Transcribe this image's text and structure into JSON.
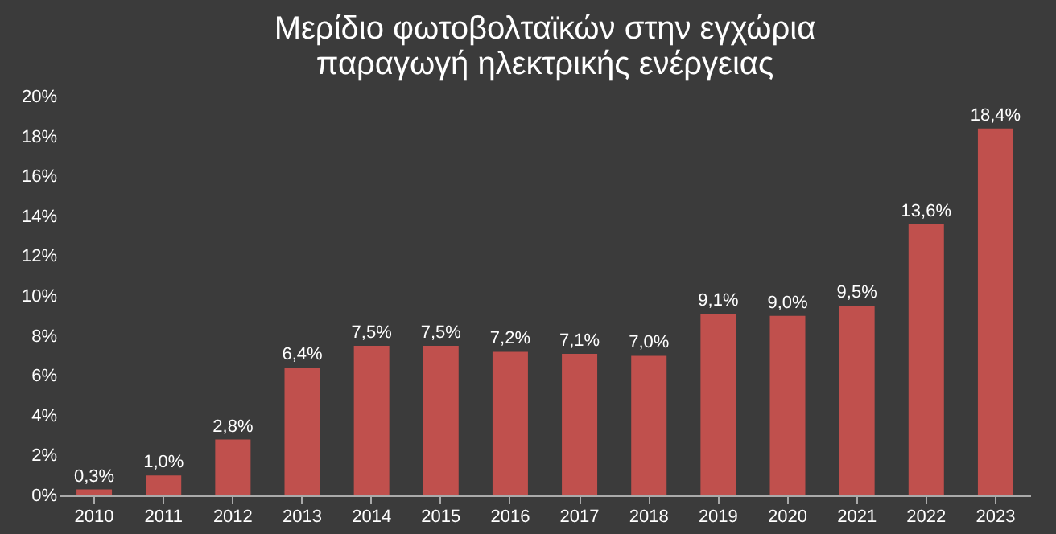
{
  "chart_data": {
    "type": "bar",
    "title": "Μερίδιο φωτοβολταϊκών στην εγχώρια\nπαραγωγή ηλεκτρικής ενέργειας",
    "categories": [
      "2010",
      "2011",
      "2012",
      "2013",
      "2014",
      "2015",
      "2016",
      "2017",
      "2018",
      "2019",
      "2020",
      "2021",
      "2022",
      "2023"
    ],
    "values": [
      0.3,
      1.0,
      2.8,
      6.4,
      7.5,
      7.5,
      7.2,
      7.1,
      7.0,
      9.1,
      9.0,
      9.5,
      13.6,
      18.4
    ],
    "value_labels": [
      "0,3%",
      "1,0%",
      "2,8%",
      "6,4%",
      "7,5%",
      "7,5%",
      "7,2%",
      "7,1%",
      "7,0%",
      "9,1%",
      "9,0%",
      "9,5%",
      "13,6%",
      "18,4%"
    ],
    "color": "#c0504d",
    "ylim": [
      0,
      20
    ],
    "yticks": [
      {
        "value": 0,
        "label": "0%"
      },
      {
        "value": 2,
        "label": "2%"
      },
      {
        "value": 4,
        "label": "4%"
      },
      {
        "value": 6,
        "label": "6%"
      },
      {
        "value": 8,
        "label": "8%"
      },
      {
        "value": 10,
        "label": "10%"
      },
      {
        "value": 12,
        "label": "12%"
      },
      {
        "value": 14,
        "label": "14%"
      },
      {
        "value": 16,
        "label": "16%"
      },
      {
        "value": 18,
        "label": "18%"
      },
      {
        "value": 20,
        "label": "20%"
      }
    ],
    "grid": false
  }
}
